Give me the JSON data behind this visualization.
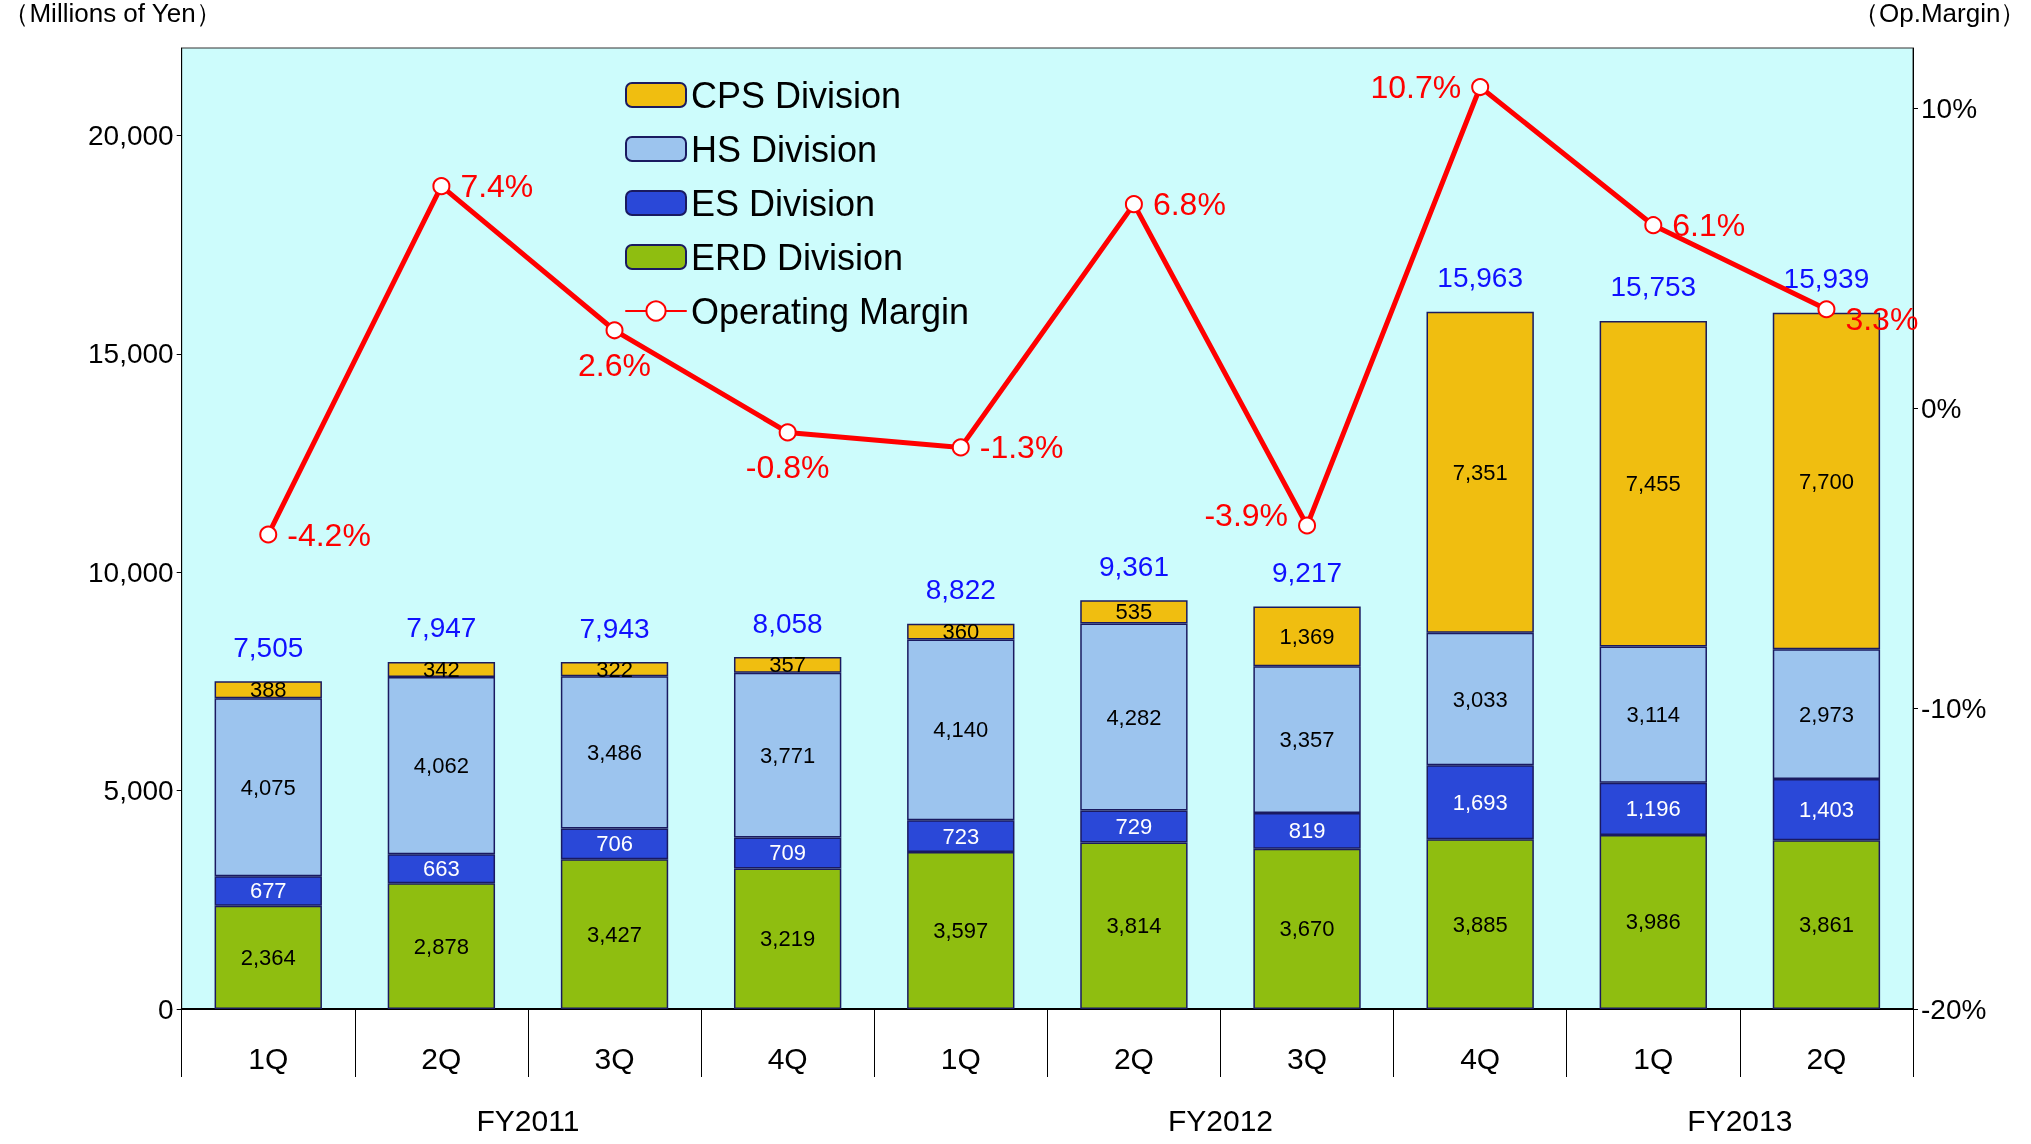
{
  "chart_data": {
    "type": "bar",
    "stacked": true,
    "ylabel": "（Millions of Yen）",
    "y2label": "（Op.Margin）",
    "categories": [
      "1Q",
      "2Q",
      "3Q",
      "4Q",
      "1Q",
      "2Q",
      "3Q",
      "4Q",
      "1Q",
      "2Q"
    ],
    "series": [
      {
        "name": "ERD Division",
        "color": "#8fbe10",
        "values": [
          2364,
          2878,
          3427,
          3219,
          3597,
          3814,
          3670,
          3885,
          3986,
          3861
        ],
        "value_labels": [
          "2,364",
          "2,878",
          "3,427",
          "3,219",
          "3,597",
          "3,814",
          "3,670",
          "3,885",
          "3,986",
          "3,861"
        ]
      },
      {
        "name": "ES Division",
        "color": "#2a48d8",
        "values": [
          677,
          663,
          706,
          709,
          723,
          729,
          819,
          1693,
          1196,
          1403
        ],
        "value_labels": [
          "677",
          "663",
          "706",
          "709",
          "723",
          "729",
          "819",
          "1,693",
          "1,196",
          "1,403"
        ]
      },
      {
        "name": "HS Division",
        "color": "#9cc4ee",
        "values": [
          4075,
          4062,
          3486,
          3771,
          4140,
          4282,
          3357,
          3033,
          3114,
          2973
        ],
        "value_labels": [
          "4,075",
          "4,062",
          "3,486",
          "3,771",
          "4,140",
          "4,282",
          "3,357",
          "3,033",
          "3,114",
          "2,973"
        ]
      },
      {
        "name": "CPS Division",
        "color": "#f0be10",
        "values": [
          388,
          342,
          322,
          357,
          360,
          535,
          1369,
          7351,
          7455,
          7700
        ],
        "value_labels": [
          "388",
          "342",
          "322",
          "357",
          "360",
          "535",
          "1,369",
          "7,351",
          "7,455",
          "7,700"
        ]
      },
      {
        "name": "Operating Margin",
        "type": "line",
        "axis": "y2",
        "color": "#ff0000",
        "marker": "circle",
        "values": [
          -4.2,
          7.4,
          2.6,
          -0.8,
          -1.3,
          6.8,
          -3.9,
          10.7,
          6.1,
          3.3
        ],
        "value_labels": [
          "-4.2%",
          "7.4%",
          "2.6%",
          "-0.8%",
          "-1.3%",
          "6.8%",
          "-3.9%",
          "10.7%",
          "6.1%",
          "3.3%"
        ]
      }
    ],
    "totals": [
      "7,505",
      "7,947",
      "7,943",
      "8,058",
      "8,822",
      "9,361",
      "9,217",
      "15,963",
      "15,753",
      "15,939"
    ],
    "ylim": [
      0,
      22000
    ],
    "yticks": [
      0,
      {
        "value": 5000,
        "label": "5,000"
      },
      {
        "value": 10000,
        "label": "10,000"
      },
      {
        "value": 15000,
        "label": "15,000"
      },
      {
        "value": 20000,
        "label": "20,000"
      }
    ],
    "y2lim": [
      -20,
      12
    ],
    "y2ticks": [
      {
        "value": -20,
        "label": "-20%"
      },
      {
        "value": -10,
        "label": "-10%"
      },
      {
        "value": 0,
        "label": "0%"
      },
      {
        "value": 10,
        "label": "10%"
      }
    ],
    "annotations": [
      "FY2011",
      "FY2012",
      "FY2013"
    ],
    "legend": "top left",
    "grid": false
  }
}
